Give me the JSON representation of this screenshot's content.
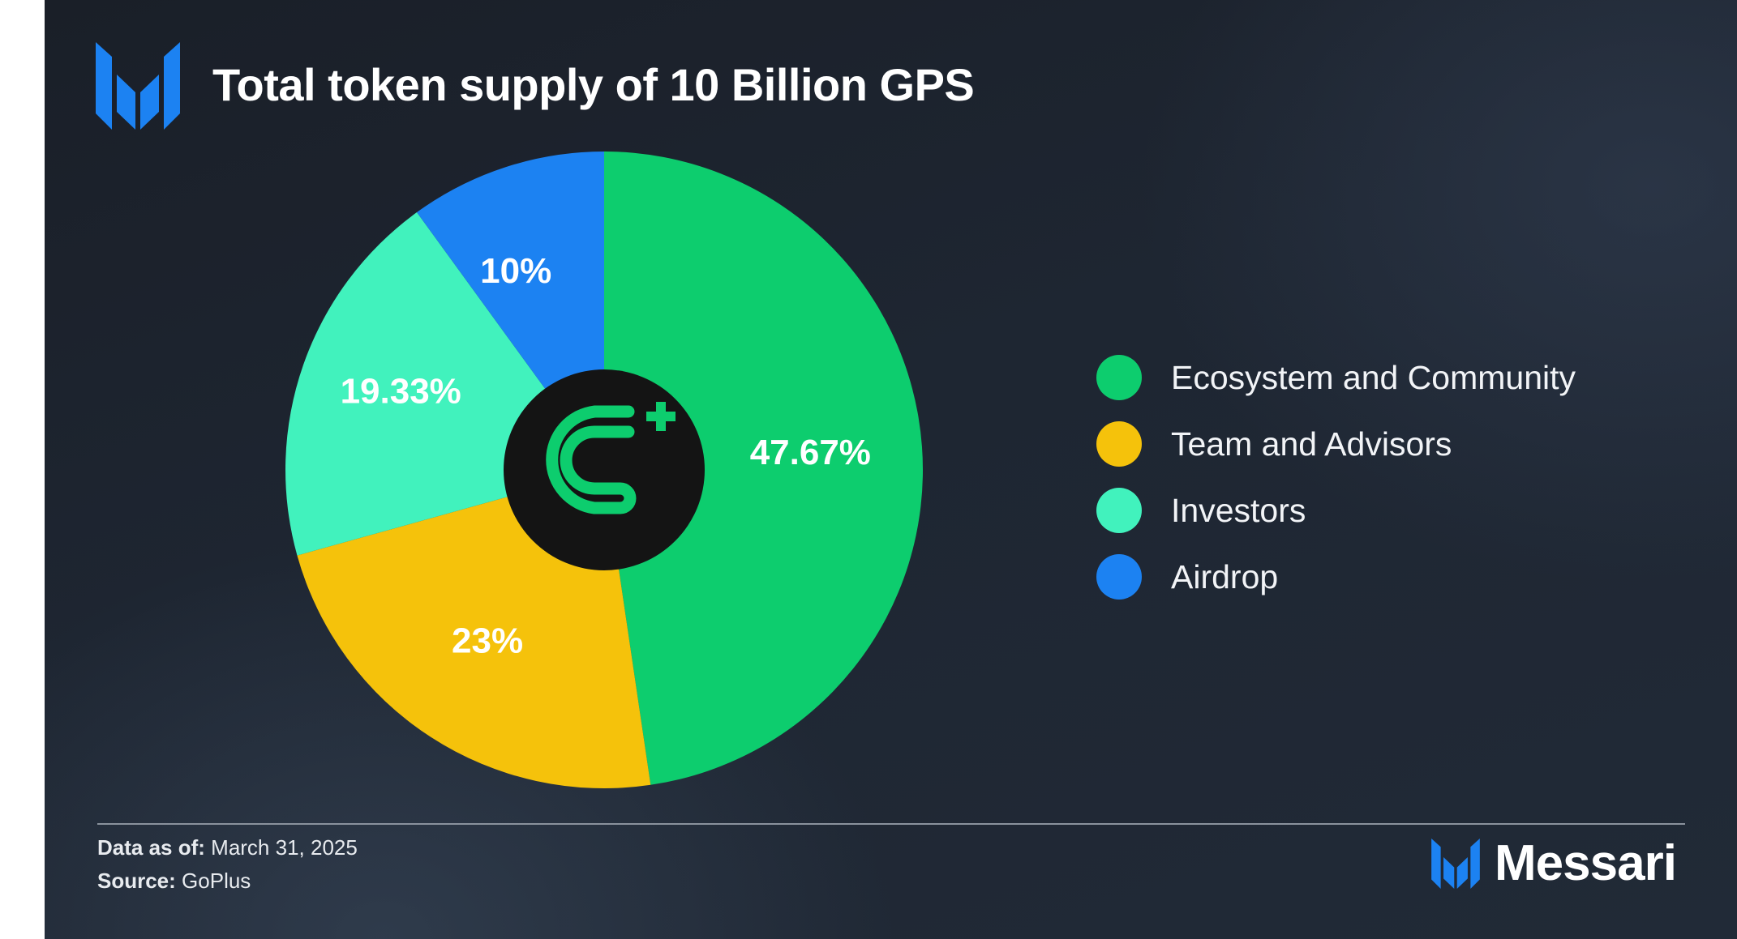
{
  "header": {
    "title": "Total token supply of 10 Billion GPS",
    "logo_icon": "messari-m-logo-icon"
  },
  "chart_data": {
    "type": "pie",
    "title": "Total token supply of 10 Billion GPS",
    "center_icon": "goplus-logo-icon",
    "slices": [
      {
        "name": "Ecosystem and Community",
        "value": 47.67,
        "label": "47.67%",
        "color": "#0dcd6e"
      },
      {
        "name": "Team and Advisors",
        "value": 23,
        "label": "23%",
        "color": "#f5c20b"
      },
      {
        "name": "Investors",
        "value": 19.33,
        "label": "19.33%",
        "color": "#41f2bd"
      },
      {
        "name": "Airdrop",
        "value": 10,
        "label": "10%",
        "color": "#1c82f2"
      }
    ],
    "legend_position": "right"
  },
  "footer": {
    "data_as_of_label": "Data as of:",
    "data_as_of_value": "March 31, 2025",
    "source_label": "Source:",
    "source_value": "GoPlus",
    "brand_name": "Messari",
    "brand_icon": "messari-m-logo-icon"
  },
  "colors": {
    "background": "#1e2632",
    "accent_blue": "#1c82f2",
    "center_disc": "#141414"
  }
}
